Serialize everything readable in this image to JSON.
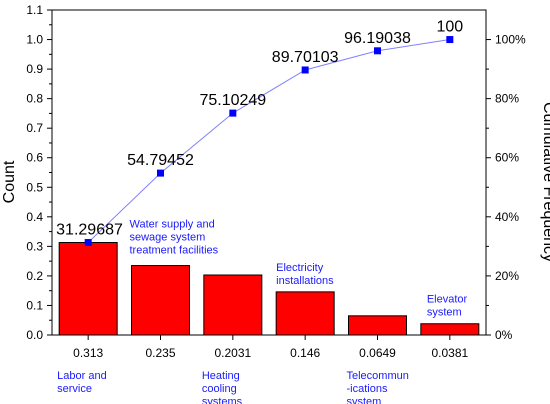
{
  "chart_data": {
    "type": "bar",
    "title": "",
    "xlabel": "",
    "ylabel": "Count",
    "y2label": "Cumulative Frequency",
    "ylim": [
      0,
      1.1
    ],
    "y2lim": [
      0,
      110
    ],
    "yticks": [
      "0.0",
      "0.1",
      "0.2",
      "0.3",
      "0.4",
      "0.5",
      "0.6",
      "0.7",
      "0.8",
      "0.9",
      "1.0",
      "1.1"
    ],
    "y2ticks": [
      "0%",
      "20%",
      "40%",
      "60%",
      "80%",
      "100%"
    ],
    "categories": [
      "0.313",
      "0.235",
      "0.2031",
      "0.146",
      "0.0649",
      "0.0381"
    ],
    "values": [
      0.313,
      0.235,
      0.2031,
      0.146,
      0.0649,
      0.0381
    ],
    "cumulative": [
      31.29687,
      54.79452,
      75.10249,
      89.70103,
      96.19038,
      100
    ],
    "cumulative_labels": [
      "31.29687",
      "54.79452",
      "75.10249",
      "89.70103",
      "96.19038",
      "100"
    ],
    "category_labels": [
      {
        "lines": [
          "Labor and",
          "service"
        ],
        "placement": "below"
      },
      {
        "lines": [
          "Water supply and",
          "sewage system",
          "treatment facilities"
        ],
        "placement": "above"
      },
      {
        "lines": [
          "Heating",
          "cooling",
          "systems"
        ],
        "placement": "below"
      },
      {
        "lines": [
          "Electricity",
          "installations"
        ],
        "placement": "above"
      },
      {
        "lines": [
          "Telecommun",
          "-ications",
          "system"
        ],
        "placement": "below"
      },
      {
        "lines": [
          "Elevator",
          "system"
        ],
        "placement": "above"
      }
    ],
    "colors": {
      "bar_fill": "#ff0000",
      "bar_stroke": "#000000",
      "line": "#8080ff",
      "marker": "#0000ff",
      "annotation_text": "#1a1aff"
    },
    "grid": false,
    "legend": "none"
  }
}
